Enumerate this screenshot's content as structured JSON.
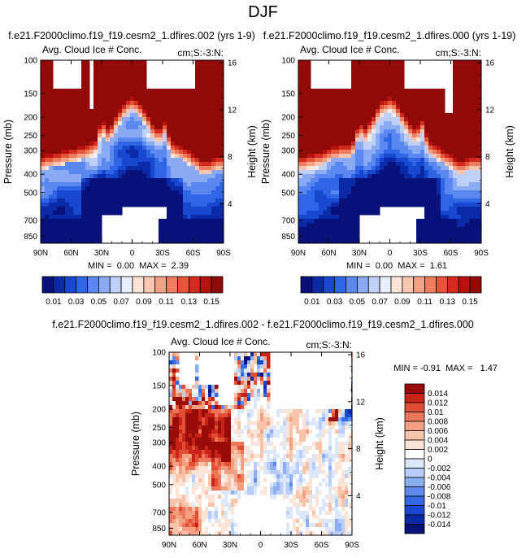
{
  "figure_title": "DJF",
  "colors": {
    "pos_scale": [
      "#08107a",
      "#0b2aa8",
      "#1848d0",
      "#2f66e6",
      "#5a88f0",
      "#8aaaf4",
      "#bed0f8",
      "#e8eefa",
      "#fae4d8",
      "#f8c6ae",
      "#f4a286",
      "#ef7c5e",
      "#e6553a",
      "#d32c1e",
      "#b81210",
      "#900a08"
    ],
    "diff_scale": [
      "#08107a",
      "#0b2aa8",
      "#1848d0",
      "#3568e4",
      "#5e8aee",
      "#8eaef4",
      "#b8cdf8",
      "#dde7fa",
      "#ffffff",
      "#fbe3d6",
      "#f7c4aa",
      "#f29f82",
      "#ec775a",
      "#e04e34",
      "#c82418",
      "#9a0c0a"
    ],
    "missing": "#ffffff"
  },
  "chart_data": [
    {
      "type": "heatmap",
      "title": "f.e21.F2000climo.f19_f19.cesm2_1.dfires.002 (yrs 1-9)",
      "left_string": "Avg. Cloud Ice # Conc.",
      "right_string": "cm;S:-3:N:",
      "xlabel": "",
      "ylabel": "Pressure (mb)",
      "ylabel_right": "Height (km)",
      "x_ticks": [
        "90N",
        "60N",
        "30N",
        "0",
        "30S",
        "60S",
        "90S"
      ],
      "x_values": [
        90,
        60,
        30,
        0,
        -30,
        -60,
        -90
      ],
      "y_ticks": [
        "100",
        "150",
        "200",
        "250",
        "300",
        "400",
        "500",
        "700",
        "850"
      ],
      "y_values": [
        100,
        150,
        200,
        250,
        300,
        400,
        500,
        700,
        850
      ],
      "ylim": [
        100,
        925
      ],
      "right_ticks": [
        "16",
        "12",
        "8",
        "4"
      ],
      "right_values": [
        16,
        12,
        8,
        4
      ],
      "stats": "MIN =  0.00  MAX =  2.39",
      "min": 0.0,
      "max": 2.39,
      "peak": 2.39
    },
    {
      "type": "heatmap",
      "title": "f.e21.F2000climo.f19_f19.cesm2_1.dfires.000 (yrs 1-19)",
      "left_string": "Avg. Cloud Ice # Conc.",
      "right_string": "cm;S:-3:N:",
      "xlabel": "",
      "ylabel": "Pressure (mb)",
      "ylabel_right": "Height (km)",
      "x_ticks": [
        "90N",
        "60N",
        "30N",
        "0",
        "30S",
        "60S",
        "90S"
      ],
      "x_values": [
        90,
        60,
        30,
        0,
        -30,
        -60,
        -90
      ],
      "y_ticks": [
        "100",
        "150",
        "200",
        "250",
        "300",
        "400",
        "500",
        "700",
        "850"
      ],
      "y_values": [
        100,
        150,
        200,
        250,
        300,
        400,
        500,
        700,
        850
      ],
      "ylim": [
        100,
        925
      ],
      "right_ticks": [
        "16",
        "12",
        "8",
        "4"
      ],
      "right_values": [
        16,
        12,
        8,
        4
      ],
      "stats": "MIN =  0.00  MAX =  1.61",
      "min": 0.0,
      "max": 1.61,
      "peak": 1.61
    },
    {
      "type": "heatmap",
      "title": "f.e21.F2000climo.f19_f19.cesm2_1.dfires.002 - f.e21.F2000climo.f19_f19.cesm2_1.dfires.000",
      "left_string": "Avg. Cloud Ice # Conc.",
      "right_string": "cm;S:-3:N:",
      "xlabel": "",
      "ylabel": "Pressure (mb)",
      "ylabel_right": "Height (km)",
      "x_ticks": [
        "90N",
        "60N",
        "30N",
        "0",
        "30S",
        "60S",
        "90S"
      ],
      "x_values": [
        90,
        60,
        30,
        0,
        -30,
        -60,
        -90
      ],
      "y_ticks": [
        "100",
        "150",
        "200",
        "250",
        "300",
        "400",
        "500",
        "700",
        "850"
      ],
      "y_values": [
        100,
        150,
        200,
        250,
        300,
        400,
        500,
        700,
        850
      ],
      "ylim": [
        100,
        925
      ],
      "right_ticks": [
        "16",
        "12",
        "8",
        "4"
      ],
      "right_values": [
        16,
        12,
        8,
        4
      ],
      "stats": "MIN = -0.91  MAX =   1.47",
      "min": -0.91,
      "max": 1.47
    }
  ],
  "colorbar_top": {
    "levels": [
      0.01,
      0.02,
      0.03,
      0.04,
      0.05,
      0.06,
      0.07,
      0.08,
      0.09,
      0.1,
      0.11,
      0.12,
      0.13,
      0.14,
      0.15
    ],
    "labels": [
      "0.01",
      "0.03",
      "0.05",
      "0.07",
      "0.09",
      "0.11",
      "0.13",
      "0.15"
    ]
  },
  "colorbar_diff": {
    "levels": [
      -0.014,
      -0.012,
      -0.01,
      -0.008,
      -0.006,
      -0.004,
      -0.002,
      0,
      0.002,
      0.004,
      0.006,
      0.008,
      0.01,
      0.012,
      0.014
    ],
    "labels": [
      "0.014",
      "0.012",
      "0.01",
      "0.008",
      "0.006",
      "0.004",
      "0.002",
      "0",
      "-0.002",
      "-0.004",
      "-0.006",
      "-0.008",
      "-0.01",
      "-0.012",
      "-0.014"
    ]
  }
}
